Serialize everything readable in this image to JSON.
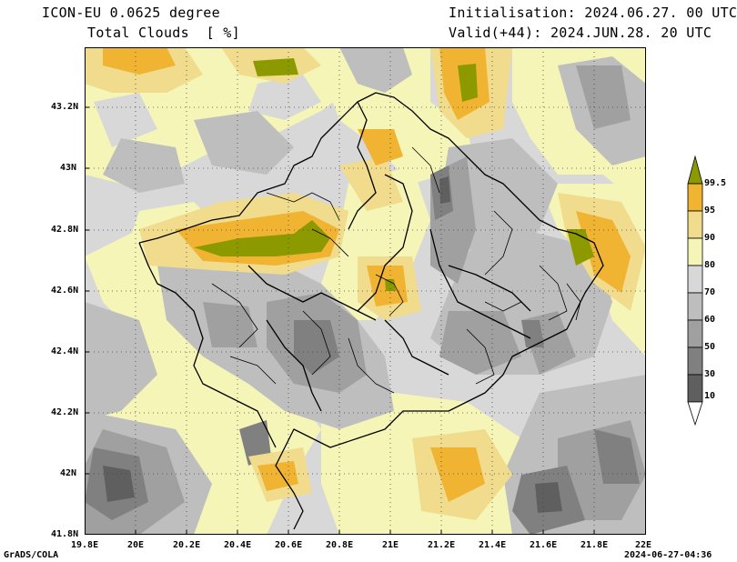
{
  "header": {
    "model": "ICON-EU 0.0625 degree",
    "variable": "Total Clouds  [ %]",
    "init": "Initialisation: 2024.06.27. 00 UTC",
    "valid": "Valid(+44): 2024.JUN.28. 20 UTC"
  },
  "axes": {
    "lat_labels": [
      "43.2N",
      "43N",
      "42.8N",
      "42.6N",
      "42.4N",
      "42.2N",
      "42N",
      "41.8N"
    ],
    "lon_labels": [
      "19.8E",
      "20E",
      "20.2E",
      "20.4E",
      "20.6E",
      "20.8E",
      "21E",
      "21.2E",
      "21.4E",
      "21.6E",
      "21.8E",
      "22E"
    ],
    "lat_range": [
      41.8,
      43.4
    ],
    "lon_range": [
      19.8,
      22.0
    ]
  },
  "legend": {
    "labels": [
      "99.5",
      "95",
      "90",
      "80",
      "70",
      "60",
      "50",
      "30",
      "10"
    ],
    "colors": {
      "c0": "#ffffff",
      "c10": "#5f5f5f",
      "c30": "#808080",
      "c50": "#a0a0a0",
      "c60": "#bebebe",
      "c70": "#d8d8d8",
      "c80": "#f5f5b8",
      "c90": "#f0dc8c",
      "c95": "#f0b432",
      "c995": "#8c9a00"
    }
  },
  "footer": {
    "left": "GrADS/COLA",
    "right": "2024-06-27-04:36"
  }
}
